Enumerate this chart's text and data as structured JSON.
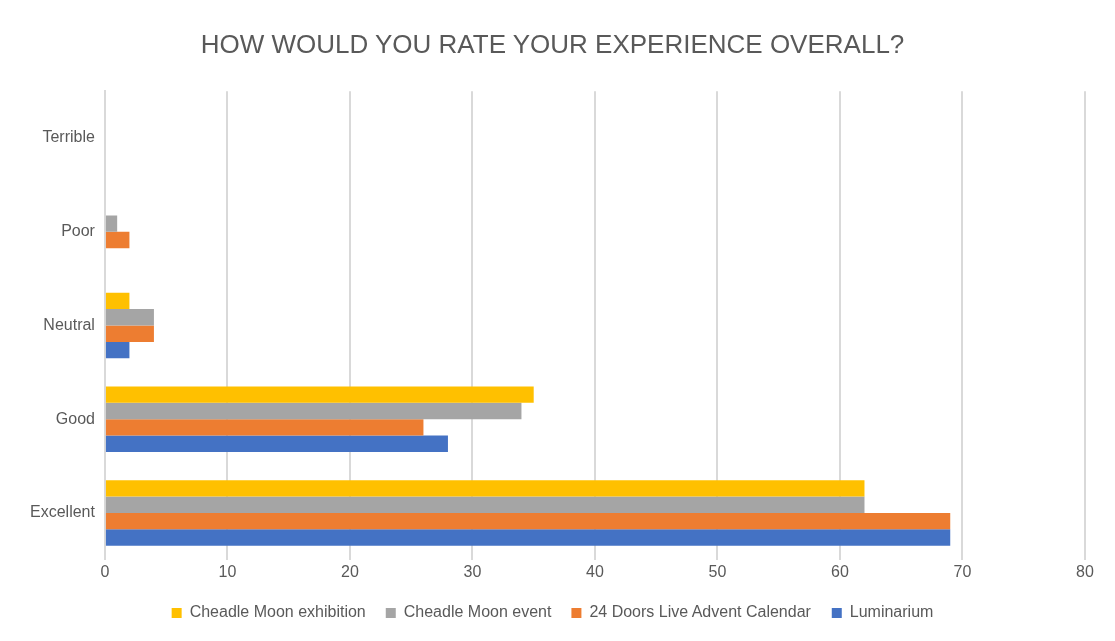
{
  "chart_data": {
    "type": "bar",
    "orientation": "horizontal",
    "title": "HOW WOULD YOU RATE YOUR EXPERIENCE OVERALL?",
    "categories": [
      "Terrible",
      "Poor",
      "Neutral",
      "Good",
      "Excellent"
    ],
    "series": [
      {
        "name": "Cheadle Moon exhibition",
        "color": "#ffc000",
        "values": [
          0,
          0,
          2,
          35,
          62
        ]
      },
      {
        "name": "Cheadle Moon event",
        "color": "#a5a5a5",
        "values": [
          0,
          1,
          4,
          34,
          62
        ]
      },
      {
        "name": "24 Doors Live Advent Calendar",
        "color": "#ed7d31",
        "values": [
          0,
          2,
          4,
          26,
          69
        ]
      },
      {
        "name": "Luminarium",
        "color": "#4472c4",
        "values": [
          0,
          0,
          2,
          28,
          69
        ]
      }
    ],
    "xlim": [
      0,
      80
    ],
    "xticks": [
      0,
      10,
      20,
      30,
      40,
      50,
      60,
      70,
      80
    ],
    "grid": "x",
    "legend": "bottom"
  }
}
